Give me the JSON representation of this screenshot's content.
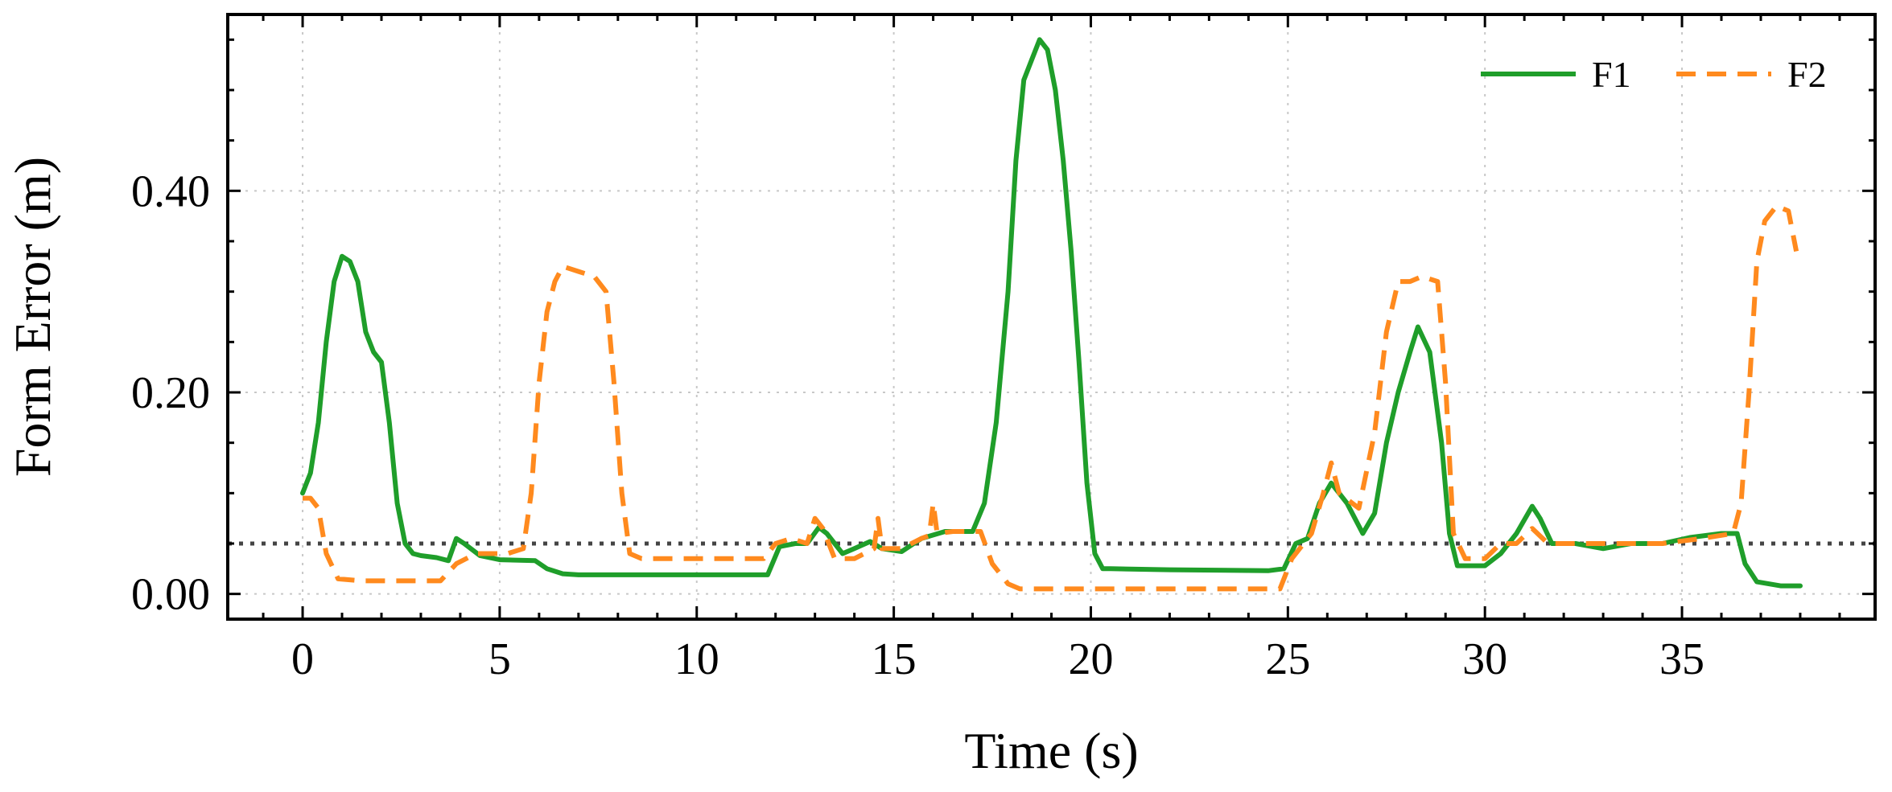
{
  "chart_data": {
    "type": "line",
    "xlabel": "Time (s)",
    "ylabel": "Form Error (m)",
    "xlim": [
      -1.9,
      39.9
    ],
    "ylim": [
      -0.025,
      0.575
    ],
    "xticks": [
      0,
      5,
      10,
      15,
      20,
      25,
      30,
      35
    ],
    "xtick_labels": [
      "0",
      "5",
      "10",
      "15",
      "20",
      "25",
      "30",
      "35"
    ],
    "yticks": [
      0.0,
      0.2,
      0.4
    ],
    "ytick_labels": [
      "0.00",
      "0.20",
      "0.40"
    ],
    "grid": true,
    "legend_position": "top-right",
    "threshold": 0.05,
    "series": [
      {
        "name": "F1",
        "color": "#1f9e2a",
        "style": "solid",
        "points": [
          [
            0,
            0.1
          ],
          [
            0.2,
            0.12
          ],
          [
            0.4,
            0.17
          ],
          [
            0.6,
            0.25
          ],
          [
            0.8,
            0.31
          ],
          [
            1.0,
            0.335
          ],
          [
            1.2,
            0.33
          ],
          [
            1.4,
            0.31
          ],
          [
            1.6,
            0.26
          ],
          [
            1.8,
            0.24
          ],
          [
            2.0,
            0.23
          ],
          [
            2.2,
            0.17
          ],
          [
            2.4,
            0.09
          ],
          [
            2.6,
            0.05
          ],
          [
            2.8,
            0.04
          ],
          [
            3.0,
            0.038
          ],
          [
            3.4,
            0.036
          ],
          [
            3.7,
            0.033
          ],
          [
            3.9,
            0.055
          ],
          [
            4.1,
            0.05
          ],
          [
            4.5,
            0.038
          ],
          [
            5.0,
            0.034
          ],
          [
            5.9,
            0.033
          ],
          [
            6.2,
            0.025
          ],
          [
            6.6,
            0.02
          ],
          [
            7.0,
            0.019
          ],
          [
            11.8,
            0.019
          ],
          [
            12.1,
            0.047
          ],
          [
            12.5,
            0.05
          ],
          [
            12.8,
            0.05
          ],
          [
            13.1,
            0.066
          ],
          [
            13.3,
            0.06
          ],
          [
            13.7,
            0.04
          ],
          [
            14.0,
            0.045
          ],
          [
            14.4,
            0.052
          ],
          [
            14.7,
            0.045
          ],
          [
            15.2,
            0.042
          ],
          [
            15.7,
            0.055
          ],
          [
            16.3,
            0.062
          ],
          [
            17.0,
            0.062
          ],
          [
            17.3,
            0.09
          ],
          [
            17.6,
            0.17
          ],
          [
            17.9,
            0.3
          ],
          [
            18.1,
            0.43
          ],
          [
            18.3,
            0.51
          ],
          [
            18.5,
            0.53
          ],
          [
            18.7,
            0.55
          ],
          [
            18.9,
            0.54
          ],
          [
            19.1,
            0.5
          ],
          [
            19.3,
            0.43
          ],
          [
            19.5,
            0.34
          ],
          [
            19.7,
            0.23
          ],
          [
            19.9,
            0.11
          ],
          [
            20.1,
            0.04
          ],
          [
            20.3,
            0.025
          ],
          [
            20.5,
            0.025
          ],
          [
            22.0,
            0.024
          ],
          [
            24.5,
            0.023
          ],
          [
            24.9,
            0.025
          ],
          [
            25.2,
            0.05
          ],
          [
            25.5,
            0.055
          ],
          [
            25.8,
            0.09
          ],
          [
            26.1,
            0.11
          ],
          [
            26.5,
            0.09
          ],
          [
            26.9,
            0.06
          ],
          [
            27.2,
            0.08
          ],
          [
            27.5,
            0.15
          ],
          [
            27.8,
            0.2
          ],
          [
            28.1,
            0.24
          ],
          [
            28.3,
            0.265
          ],
          [
            28.6,
            0.24
          ],
          [
            28.9,
            0.15
          ],
          [
            29.1,
            0.06
          ],
          [
            29.3,
            0.028
          ],
          [
            30.0,
            0.028
          ],
          [
            30.4,
            0.04
          ],
          [
            30.8,
            0.06
          ],
          [
            31.2,
            0.087
          ],
          [
            31.4,
            0.075
          ],
          [
            31.7,
            0.05
          ],
          [
            32.3,
            0.05
          ],
          [
            33.0,
            0.045
          ],
          [
            33.7,
            0.05
          ],
          [
            34.5,
            0.05
          ],
          [
            35.2,
            0.056
          ],
          [
            36.0,
            0.06
          ],
          [
            36.4,
            0.06
          ],
          [
            36.6,
            0.03
          ],
          [
            36.9,
            0.012
          ],
          [
            37.5,
            0.008
          ],
          [
            38.0,
            0.008
          ]
        ]
      },
      {
        "name": "F2",
        "color": "#ff8a1e",
        "style": "dashed",
        "points": [
          [
            0,
            0.095
          ],
          [
            0.2,
            0.095
          ],
          [
            0.4,
            0.085
          ],
          [
            0.6,
            0.04
          ],
          [
            0.9,
            0.015
          ],
          [
            1.5,
            0.013
          ],
          [
            3.5,
            0.013
          ],
          [
            3.9,
            0.03
          ],
          [
            4.4,
            0.04
          ],
          [
            5.2,
            0.04
          ],
          [
            5.6,
            0.045
          ],
          [
            5.8,
            0.1
          ],
          [
            6.0,
            0.21
          ],
          [
            6.2,
            0.28
          ],
          [
            6.4,
            0.31
          ],
          [
            6.6,
            0.325
          ],
          [
            7.0,
            0.32
          ],
          [
            7.4,
            0.315
          ],
          [
            7.7,
            0.3
          ],
          [
            7.9,
            0.21
          ],
          [
            8.1,
            0.1
          ],
          [
            8.3,
            0.04
          ],
          [
            8.6,
            0.035
          ],
          [
            11.7,
            0.035
          ],
          [
            12.0,
            0.05
          ],
          [
            12.4,
            0.055
          ],
          [
            12.8,
            0.05
          ],
          [
            13.0,
            0.075
          ],
          [
            13.2,
            0.065
          ],
          [
            13.5,
            0.035
          ],
          [
            14.0,
            0.035
          ],
          [
            14.5,
            0.045
          ],
          [
            14.6,
            0.075
          ],
          [
            14.7,
            0.045
          ],
          [
            15.2,
            0.045
          ],
          [
            15.7,
            0.055
          ],
          [
            15.9,
            0.058
          ],
          [
            16.0,
            0.09
          ],
          [
            16.1,
            0.06
          ],
          [
            16.5,
            0.062
          ],
          [
            17.2,
            0.062
          ],
          [
            17.5,
            0.03
          ],
          [
            17.9,
            0.01
          ],
          [
            18.2,
            0.005
          ],
          [
            20.0,
            0.005
          ],
          [
            24.8,
            0.005
          ],
          [
            25.1,
            0.035
          ],
          [
            25.6,
            0.06
          ],
          [
            25.9,
            0.1
          ],
          [
            26.1,
            0.13
          ],
          [
            26.3,
            0.1
          ],
          [
            26.8,
            0.085
          ],
          [
            27.2,
            0.16
          ],
          [
            27.5,
            0.26
          ],
          [
            27.8,
            0.31
          ],
          [
            28.1,
            0.31
          ],
          [
            28.4,
            0.315
          ],
          [
            28.8,
            0.31
          ],
          [
            29.0,
            0.21
          ],
          [
            29.2,
            0.06
          ],
          [
            29.5,
            0.035
          ],
          [
            30.0,
            0.035
          ],
          [
            30.4,
            0.05
          ],
          [
            30.8,
            0.05
          ],
          [
            31.2,
            0.065
          ],
          [
            31.6,
            0.05
          ],
          [
            32.2,
            0.05
          ],
          [
            33.0,
            0.05
          ],
          [
            33.7,
            0.05
          ],
          [
            34.5,
            0.05
          ],
          [
            35.5,
            0.055
          ],
          [
            36.3,
            0.06
          ],
          [
            36.5,
            0.09
          ],
          [
            36.7,
            0.2
          ],
          [
            36.9,
            0.33
          ],
          [
            37.1,
            0.37
          ],
          [
            37.4,
            0.385
          ],
          [
            37.7,
            0.38
          ],
          [
            37.9,
            0.34
          ]
        ]
      }
    ]
  }
}
